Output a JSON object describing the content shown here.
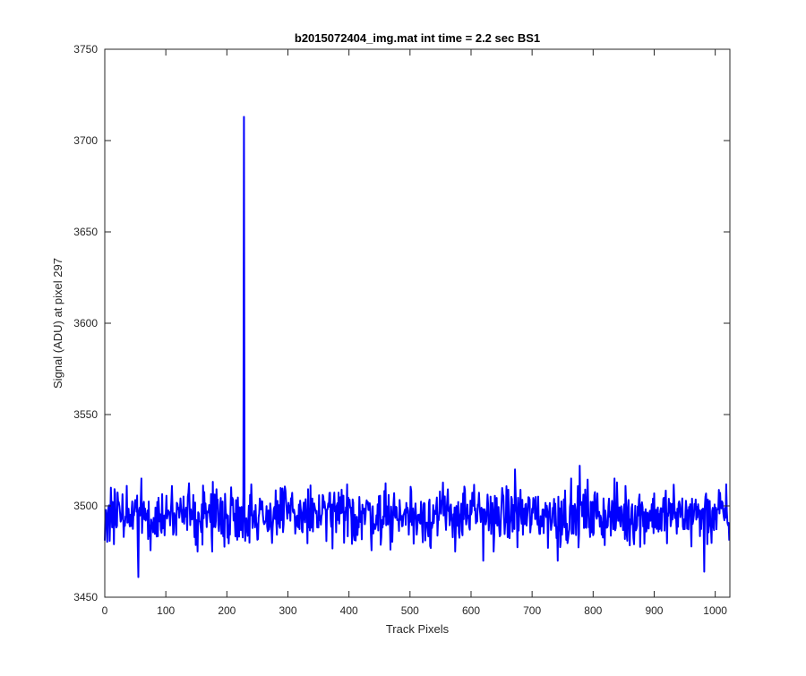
{
  "chart_data": {
    "type": "line",
    "title": "b2015072404_img.mat int time = 2.2 sec   BS1",
    "xlabel": "Track Pixels",
    "ylabel": "Signal (ADU) at pixel 297",
    "xlim": [
      0,
      1024
    ],
    "ylim": [
      3450,
      3750
    ],
    "xticks": [
      0,
      100,
      200,
      300,
      400,
      500,
      600,
      700,
      800,
      900,
      1000
    ],
    "yticks": [
      3450,
      3500,
      3550,
      3600,
      3650,
      3700,
      3750
    ],
    "grid": false,
    "legend": "none",
    "series": [
      {
        "color": "#0000ff",
        "baseline": 3495,
        "noise_amplitude": 8,
        "notable_points": [
          {
            "x": 0,
            "y": 3481
          },
          {
            "x": 55,
            "y": 3461
          },
          {
            "x": 228,
            "y": 3713
          },
          {
            "x": 229,
            "y": 3496
          },
          {
            "x": 620,
            "y": 3470
          },
          {
            "x": 672,
            "y": 3520
          },
          {
            "x": 742,
            "y": 3470
          },
          {
            "x": 778,
            "y": 3522
          },
          {
            "x": 982,
            "y": 3464
          },
          {
            "x": 1023,
            "y": 3481
          }
        ]
      }
    ]
  }
}
